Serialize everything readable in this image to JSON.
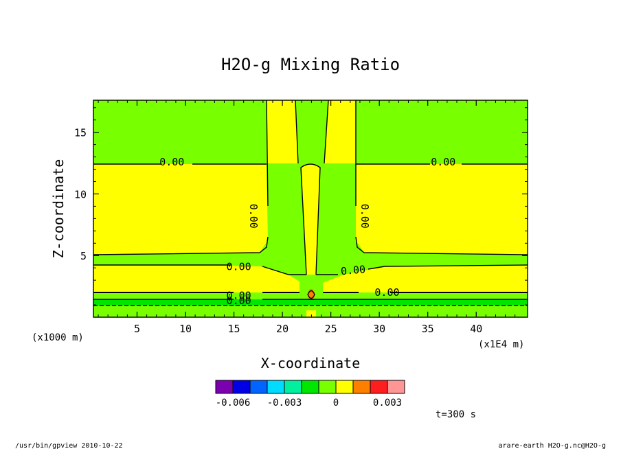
{
  "chart_data": {
    "type": "heatmap",
    "title": "H2O-g Mixing Ratio",
    "xlabel": "X-coordinate",
    "ylabel": "Z-coordinate",
    "x_unit_left": "(x1000 m)",
    "x_unit_right": "(x1E4 m)",
    "x_ticks": [
      "5",
      "10",
      "15",
      "20",
      "25",
      "30",
      "35",
      "40"
    ],
    "x_tick_values": [
      5,
      10,
      15,
      20,
      25,
      30,
      35,
      40
    ],
    "y_ticks": [
      "5",
      "10",
      "15"
    ],
    "y_tick_values": [
      5,
      10,
      15
    ],
    "xlim": [
      0.5,
      45.3
    ],
    "ylim": [
      0,
      17.6
    ],
    "contour_labels": [
      {
        "text": "0.00",
        "x": 8.6,
        "z": 12.6,
        "angle": 0
      },
      {
        "text": "0.00",
        "x": 36.6,
        "z": 12.6,
        "angle": 0
      },
      {
        "text": "0.00",
        "x": 17.0,
        "z": 8.2,
        "angle": 90
      },
      {
        "text": "0.00",
        "x": 28.5,
        "z": 8.2,
        "angle": 90
      },
      {
        "text": "0.00",
        "x": 15.5,
        "z": 4.1,
        "angle": 0
      },
      {
        "text": "0.00",
        "x": 27.3,
        "z": 3.8,
        "angle": -5
      },
      {
        "text": "0.00",
        "x": 15.5,
        "z": 1.75,
        "angle": 0
      },
      {
        "text": "0.00",
        "x": 15.5,
        "z": 1.35,
        "angle": 0
      },
      {
        "text": "0.00",
        "x": 30.8,
        "z": 2.0,
        "angle": 0
      }
    ],
    "colorbar": {
      "colors": [
        "#7a00b0",
        "#0000e6",
        "#0064ff",
        "#00dcff",
        "#00f0a0",
        "#00e600",
        "#78ff00",
        "#ffff00",
        "#ff8000",
        "#ff1e1e",
        "#ff9696"
      ],
      "tick_labels": [
        "-0.006",
        "-0.003",
        "0",
        "0.003"
      ],
      "tick_values": [
        -0.006,
        -0.003,
        0,
        0.003
      ],
      "range": [
        -0.007,
        0.004
      ]
    },
    "fill_colors": {
      "green": "#78ff00",
      "yellow": "#ffff00",
      "bright_green": "#00e600",
      "orange": "#ff8000",
      "red": "#ff1e1e"
    }
  },
  "time_label": "t=300 s",
  "footer_left": "/usr/bin/gpview  2010-10-22",
  "footer_right": "arare-earth_H2O-g.nc@H2O-g"
}
